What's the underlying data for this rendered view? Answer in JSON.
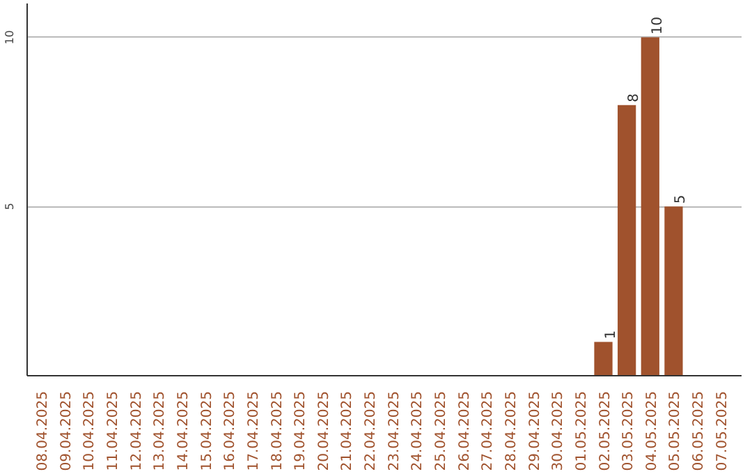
{
  "chart_data": {
    "type": "bar",
    "categories": [
      "08.04.2025",
      "09.04.2025",
      "10.04.2025",
      "11.04.2025",
      "12.04.2025",
      "13.04.2025",
      "14.04.2025",
      "15.04.2025",
      "16.04.2025",
      "17.04.2025",
      "18.04.2025",
      "19.04.2025",
      "20.04.2025",
      "21.04.2025",
      "22.04.2025",
      "23.04.2025",
      "24.04.2025",
      "25.04.2025",
      "26.04.2025",
      "27.04.2025",
      "28.04.2025",
      "29.04.2025",
      "30.04.2025",
      "01.05.2025",
      "02.05.2025",
      "03.05.2025",
      "04.05.2025",
      "05.05.2025",
      "06.05.2025",
      "07.05.2025"
    ],
    "values": [
      0,
      0,
      0,
      0,
      0,
      0,
      0,
      0,
      0,
      0,
      0,
      0,
      0,
      0,
      0,
      0,
      0,
      0,
      0,
      0,
      0,
      0,
      0,
      0,
      1,
      8,
      10,
      5,
      0,
      0
    ],
    "value_labels": [
      null,
      null,
      null,
      null,
      null,
      null,
      null,
      null,
      null,
      null,
      null,
      null,
      null,
      null,
      null,
      null,
      null,
      null,
      null,
      null,
      null,
      null,
      null,
      null,
      "1",
      "8",
      "10",
      "5",
      null,
      null
    ],
    "color": "#a0522d",
    "ylim": [
      0,
      11
    ],
    "yticks": [
      5,
      10
    ],
    "grid": "y"
  }
}
